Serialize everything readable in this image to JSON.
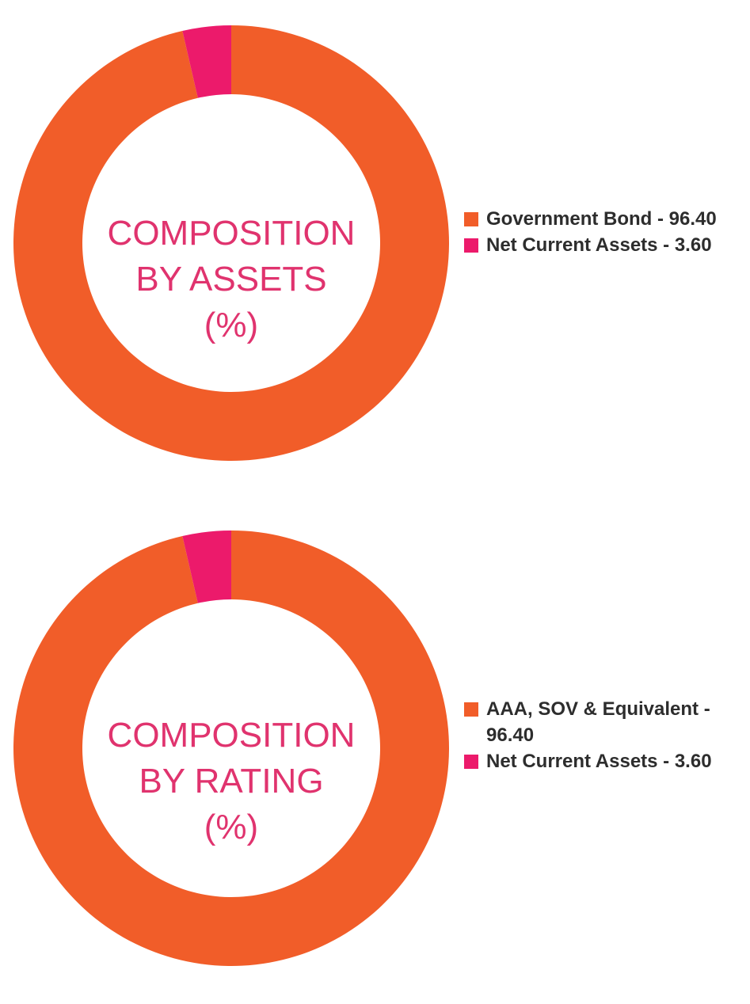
{
  "colors": {
    "primary_segment": "#f15d29",
    "secondary_segment": "#ec1a6b",
    "center_text": "#e0336e",
    "legend_text": "#2d2d2d"
  },
  "chart_data": [
    {
      "type": "pie",
      "donut": true,
      "center_label": [
        "COMPOSITION",
        "BY ASSETS",
        "(%)"
      ],
      "categories": [
        "Government Bond",
        "Net Current Assets"
      ],
      "values": [
        96.4,
        3.6
      ],
      "legend": [
        "Government Bond - 96.40",
        "Net Current Assets - 3.60"
      ],
      "legend_placement": "right"
    },
    {
      "type": "pie",
      "donut": true,
      "center_label": [
        "COMPOSITION",
        "BY RATING",
        "(%)"
      ],
      "categories": [
        "AAA, SOV & Equivalent",
        "Net Current Assets"
      ],
      "values": [
        96.4,
        3.6
      ],
      "legend": [
        "AAA, SOV & Equivalent - 96.40",
        "Net Current Assets - 3.60"
      ],
      "legend_placement": "right"
    }
  ]
}
